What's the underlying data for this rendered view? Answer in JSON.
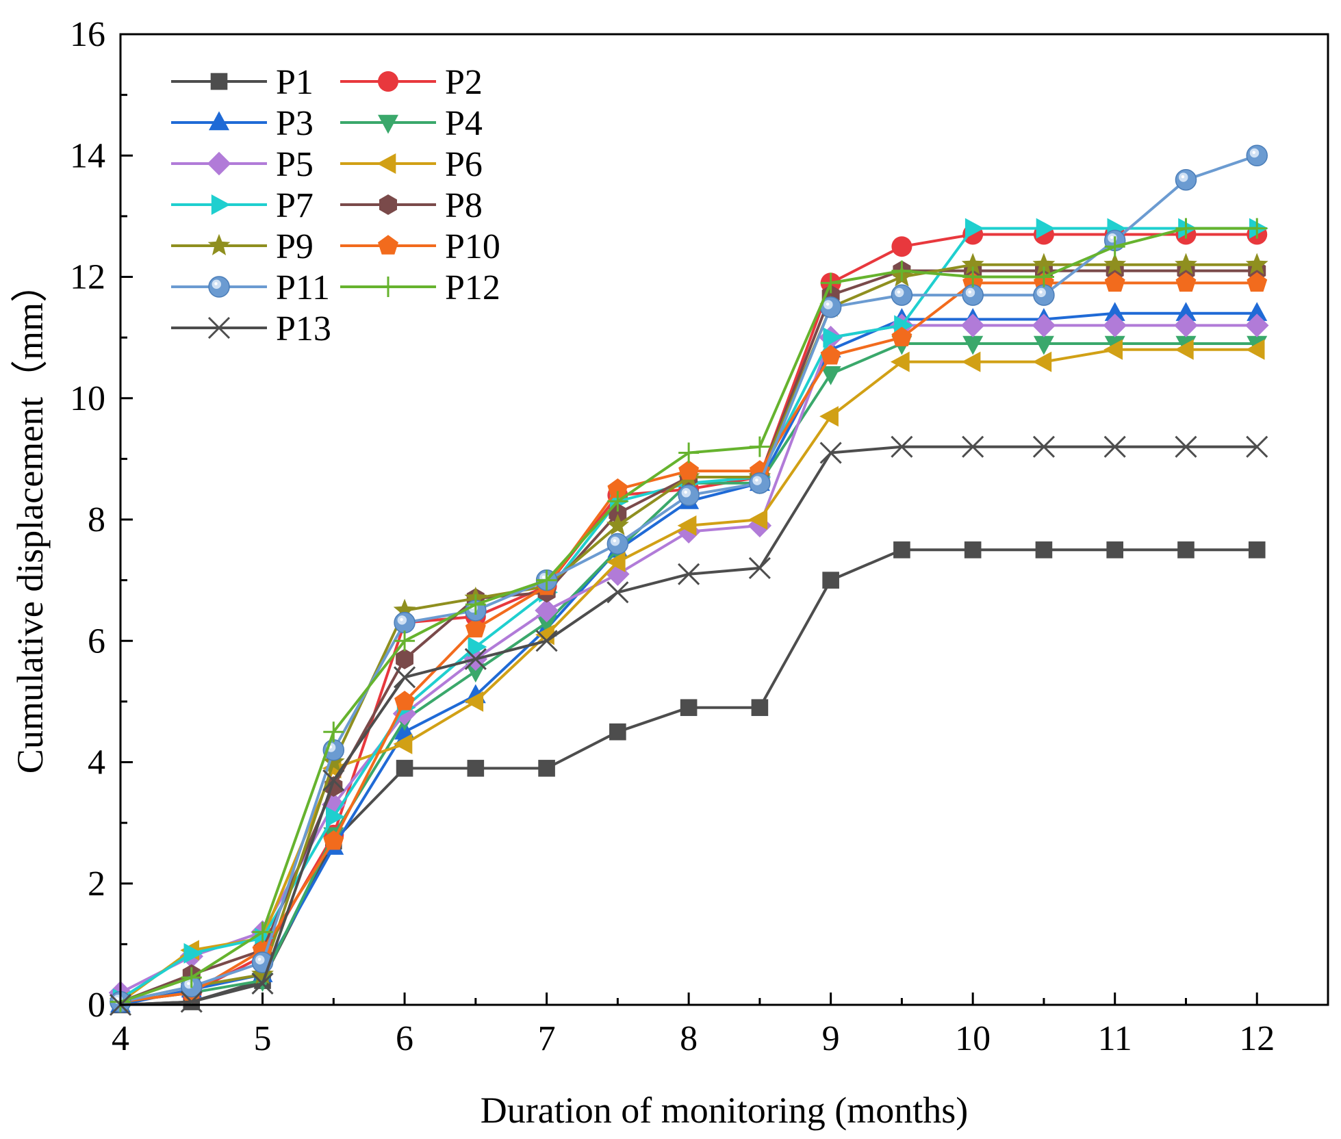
{
  "chart_data": {
    "type": "line",
    "title": "",
    "xlabel": "Duration of monitoring (months)",
    "ylabel": "Cumulative displacement（mm）",
    "xlim": [
      4,
      12.5
    ],
    "ylim": [
      0,
      16
    ],
    "xticks": [
      4,
      5,
      6,
      7,
      8,
      9,
      10,
      11,
      12
    ],
    "yticks": [
      0,
      2,
      4,
      6,
      8,
      10,
      12,
      14,
      16
    ],
    "xtick_labels": [
      "4",
      "5",
      "6",
      "7",
      "8",
      "9",
      "10",
      "11",
      "12"
    ],
    "ytick_labels": [
      "0",
      "2",
      "4",
      "6",
      "8",
      "10",
      "12",
      "14",
      "16"
    ],
    "x": [
      4,
      4.5,
      5,
      5.5,
      6,
      6.5,
      7,
      7.5,
      8,
      8.5,
      9,
      9.5,
      10,
      10.5,
      11,
      11.5,
      12
    ],
    "legend_position": "top-left",
    "series": [
      {
        "name": "P1",
        "color": "#4d4d4d",
        "marker": "square",
        "values": [
          0,
          0.05,
          0.4,
          2.7,
          3.9,
          3.9,
          3.9,
          4.5,
          4.9,
          4.9,
          7.0,
          7.5,
          7.5,
          7.5,
          7.5,
          7.5,
          7.5
        ]
      },
      {
        "name": "P2",
        "color": "#e8383d",
        "marker": "circle",
        "values": [
          0.05,
          0.2,
          0.8,
          2.8,
          6.3,
          6.4,
          6.9,
          8.4,
          8.5,
          8.7,
          11.9,
          12.5,
          12.7,
          12.7,
          12.7,
          12.7,
          12.7
        ]
      },
      {
        "name": "P3",
        "color": "#1f6ad6",
        "marker": "triangle-up",
        "values": [
          0,
          0.25,
          0.5,
          2.6,
          4.5,
          5.1,
          6.2,
          7.5,
          8.3,
          8.6,
          10.8,
          11.3,
          11.3,
          11.3,
          11.4,
          11.4,
          11.4
        ]
      },
      {
        "name": "P4",
        "color": "#3aa86b",
        "marker": "triangle-down",
        "values": [
          0.05,
          0.2,
          0.4,
          2.8,
          4.7,
          5.5,
          6.3,
          7.5,
          8.6,
          8.6,
          10.4,
          10.9,
          10.9,
          10.9,
          10.9,
          10.9,
          10.9
        ]
      },
      {
        "name": "P5",
        "color": "#b17bd8",
        "marker": "diamond",
        "values": [
          0.2,
          0.8,
          1.2,
          3.3,
          4.8,
          5.7,
          6.5,
          7.1,
          7.8,
          7.9,
          11.0,
          11.2,
          11.2,
          11.2,
          11.2,
          11.2,
          11.2
        ]
      },
      {
        "name": "P6",
        "color": "#d1a015",
        "marker": "triangle-left",
        "values": [
          0.05,
          0.9,
          1.1,
          3.9,
          4.3,
          5.0,
          6.1,
          7.3,
          7.9,
          8.0,
          9.7,
          10.6,
          10.6,
          10.6,
          10.8,
          10.8,
          10.8
        ]
      },
      {
        "name": "P7",
        "color": "#1fcfcf",
        "marker": "triangle-right",
        "values": [
          0.1,
          0.85,
          1.1,
          3.1,
          4.9,
          5.9,
          6.8,
          8.3,
          8.6,
          8.7,
          11.0,
          11.2,
          12.8,
          12.8,
          12.8,
          12.8,
          12.8
        ]
      },
      {
        "name": "P8",
        "color": "#7a4a4a",
        "marker": "hexagon",
        "values": [
          0.05,
          0.5,
          0.9,
          3.6,
          5.7,
          6.7,
          6.8,
          8.1,
          8.7,
          8.7,
          11.7,
          12.1,
          12.1,
          12.1,
          12.1,
          12.1,
          12.1
        ]
      },
      {
        "name": "P9",
        "color": "#8f8f1f",
        "marker": "star",
        "values": [
          0.05,
          0.3,
          0.5,
          4.0,
          6.5,
          6.7,
          6.9,
          7.9,
          8.7,
          8.7,
          11.5,
          12.0,
          12.2,
          12.2,
          12.2,
          12.2,
          12.2
        ]
      },
      {
        "name": "P10",
        "color": "#f26b1d",
        "marker": "pentagon",
        "values": [
          0.05,
          0.2,
          0.9,
          2.7,
          5.0,
          6.2,
          6.9,
          8.5,
          8.8,
          8.8,
          10.7,
          11.0,
          11.9,
          11.9,
          11.9,
          11.9,
          11.9
        ]
      },
      {
        "name": "P11",
        "color": "#6b9bd1",
        "marker": "sphere",
        "values": [
          0.05,
          0.3,
          0.7,
          4.2,
          6.3,
          6.5,
          7.0,
          7.6,
          8.4,
          8.6,
          11.5,
          11.7,
          11.7,
          11.7,
          12.6,
          13.6,
          14.0
        ]
      },
      {
        "name": "P12",
        "color": "#66b32e",
        "marker": "plus",
        "values": [
          0.05,
          0.45,
          1.2,
          4.5,
          6.0,
          6.6,
          7.0,
          8.3,
          9.1,
          9.2,
          11.9,
          12.1,
          12.0,
          12.0,
          12.5,
          12.8,
          12.8
        ]
      },
      {
        "name": "P13",
        "color": "#4d4d4d",
        "marker": "x",
        "values": [
          0,
          0.05,
          0.35,
          3.7,
          5.4,
          5.7,
          6.0,
          6.8,
          7.1,
          7.2,
          9.1,
          9.2,
          9.2,
          9.2,
          9.2,
          9.2,
          9.2
        ]
      }
    ]
  }
}
